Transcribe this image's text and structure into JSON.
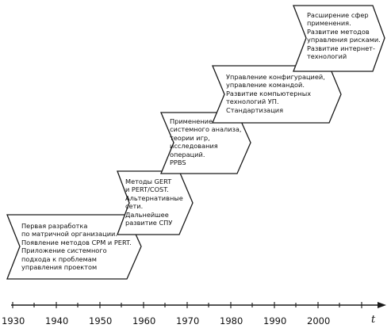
{
  "stages": [
    {
      "id": "stage-1",
      "lines": [
        "Первая разработка",
        "по матричной организации.",
        "Появление методов CPM и PERT.",
        "Приложение системного",
        "подхода к проблемам",
        "управления проектом"
      ]
    },
    {
      "id": "stage-2",
      "lines": [
        "Методы GERT",
        "и PERT/COST.",
        "Альтернативные",
        "сети.",
        "Дальнейшее",
        "развитие СПУ"
      ]
    },
    {
      "id": "stage-3",
      "lines": [
        "Применение",
        "системного анализа,",
        "теории игр,",
        "исследования",
        "операций.",
        "PPBS"
      ]
    },
    {
      "id": "stage-4",
      "lines": [
        "Управление конфигурацией,",
        "управление командой.",
        "Развитие компьютерных",
        "технологий УП.",
        "Стандартизация"
      ]
    },
    {
      "id": "stage-5",
      "lines": [
        "Расширение сфер",
        "применения.",
        "Развитие методов",
        "управления рисками.",
        "Развитие интернет-",
        "технологий"
      ]
    }
  ],
  "timeline": {
    "years": [
      "1930",
      "1940",
      "1950",
      "1960",
      "1970",
      "1980",
      "1990",
      "2000"
    ],
    "axis_label": "t"
  }
}
